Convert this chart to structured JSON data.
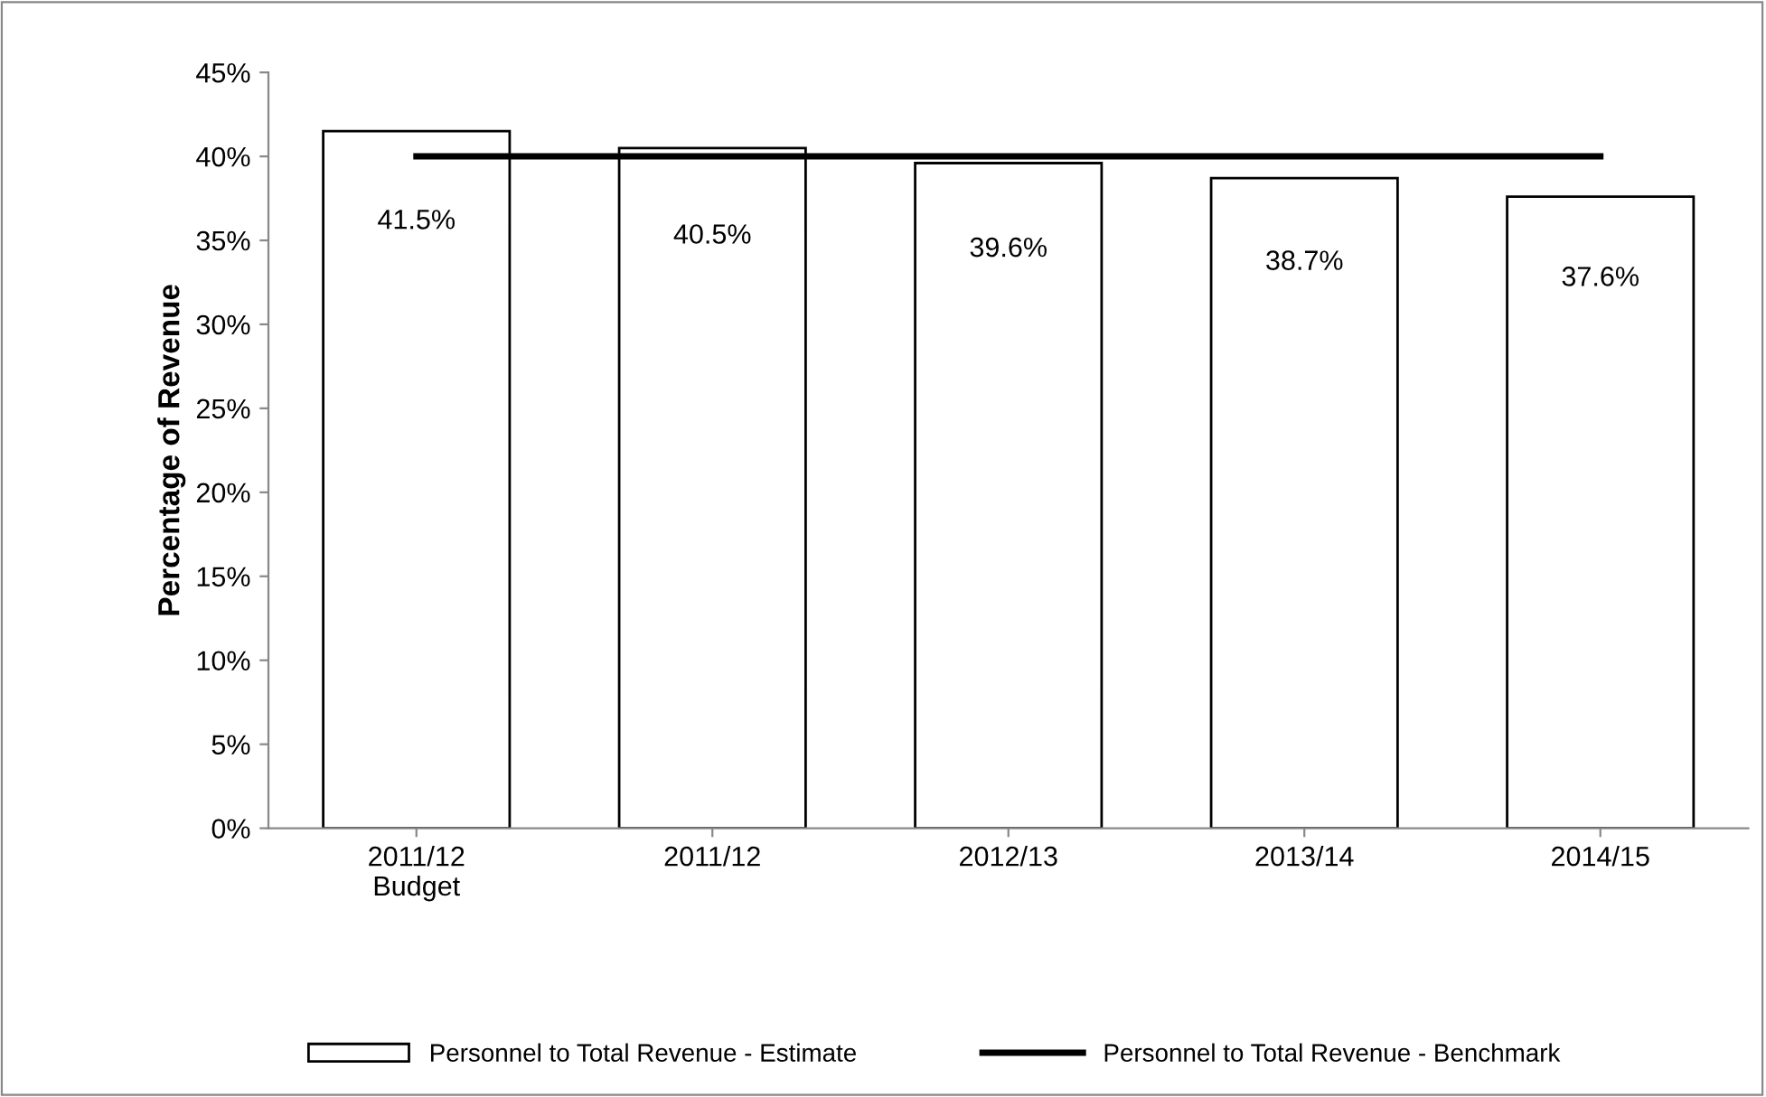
{
  "chart_data": {
    "type": "bar",
    "ylabel": "Percentage of Revenue",
    "categories": [
      "2011/12\nBudget",
      "2011/12",
      "2012/13",
      "2013/14",
      "2014/15"
    ],
    "series": [
      {
        "name": "Personnel to Total Revenue - Estimate",
        "color": "#ffffff",
        "values": [
          41.5,
          40.5,
          39.6,
          38.7,
          37.6
        ],
        "value_labels": [
          "41.5%",
          "40.5%",
          "39.6%",
          "38.7%",
          "37.6%"
        ]
      },
      {
        "name": "Personnel to Total Revenue - Benchmark",
        "type": "line",
        "color": "#000000",
        "values": [
          40,
          40,
          40,
          40,
          40
        ]
      }
    ],
    "ylim": [
      0,
      45
    ],
    "yticks": [
      {
        "value": 0,
        "label": "0%"
      },
      {
        "value": 5,
        "label": "5%"
      },
      {
        "value": 10,
        "label": "10%"
      },
      {
        "value": 15,
        "label": "15%"
      },
      {
        "value": 20,
        "label": "20%"
      },
      {
        "value": 25,
        "label": "25%"
      },
      {
        "value": 30,
        "label": "30%"
      },
      {
        "value": 35,
        "label": "35%"
      },
      {
        "value": 40,
        "label": "40%"
      },
      {
        "value": 45,
        "label": "45%"
      }
    ],
    "grid": false,
    "legend": "bottom",
    "marker": "none",
    "line_style": "solid"
  }
}
